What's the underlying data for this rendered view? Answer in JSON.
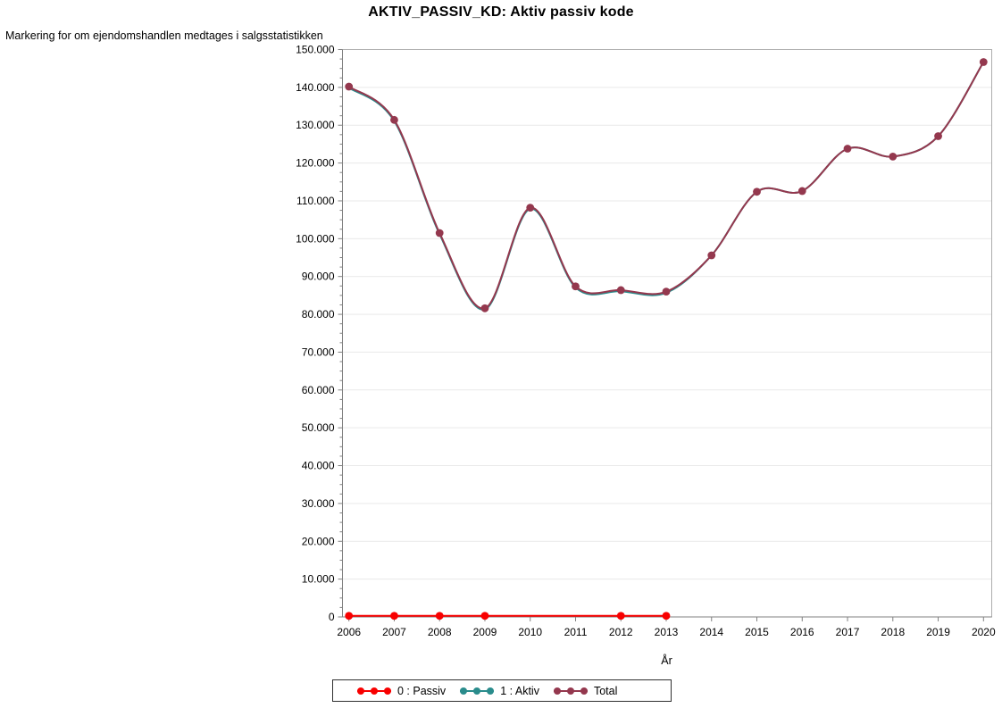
{
  "chart_data": {
    "type": "line",
    "title": "AKTIV_PASSIV_KD: Aktiv passiv kode",
    "subtitle": "Markering for om ejendomshandlen medtages i salgsstatistikken",
    "xlabel": "År",
    "ylabel": "",
    "x": [
      2006,
      2007,
      2008,
      2009,
      2010,
      2011,
      2012,
      2013,
      2014,
      2015,
      2016,
      2017,
      2018,
      2019,
      2020
    ],
    "x_tick_labels": [
      "2006",
      "2007",
      "2008",
      "2009",
      "2010",
      "2011",
      "2012",
      "2013",
      "2014",
      "2015",
      "2016",
      "2017",
      "2018",
      "2019",
      "2020"
    ],
    "ylim": [
      0,
      150000
    ],
    "y_tick_interval": 10000,
    "y_minor_tick_interval": 2500,
    "y_tick_labels": [
      "0",
      "10.000",
      "20.000",
      "30.000",
      "40.000",
      "50.000",
      "60.000",
      "70.000",
      "80.000",
      "90.000",
      "100.000",
      "110.000",
      "120.000",
      "130.000",
      "140.000",
      "150.000"
    ],
    "grid": true,
    "legend_position": "bottom",
    "series": [
      {
        "name": "0 : Passiv",
        "color": "#f80000",
        "interpolation": "linear",
        "values": [
          300,
          300,
          300,
          300,
          300,
          300,
          300,
          300,
          null,
          null,
          null,
          null,
          null,
          null,
          null
        ],
        "marker_years": [
          2006,
          2007,
          2008,
          2009,
          2012,
          2013
        ]
      },
      {
        "name": "1 : Aktiv",
        "color": "#2a8c8c",
        "interpolation": "spline",
        "values": [
          139900,
          131100,
          101200,
          81300,
          107900,
          87100,
          86100,
          85700,
          95600,
          112400,
          112600,
          123800,
          121700,
          127100,
          146700
        ],
        "marker_years": []
      },
      {
        "name": "Total",
        "color": "#94384e",
        "interpolation": "spline",
        "values": [
          140200,
          131400,
          101500,
          81600,
          108200,
          87400,
          86400,
          86000,
          95600,
          112400,
          112600,
          123800,
          121700,
          127100,
          146700
        ],
        "marker_years": [
          2006,
          2007,
          2008,
          2009,
          2010,
          2011,
          2012,
          2013,
          2014,
          2015,
          2016,
          2017,
          2018,
          2019,
          2020
        ]
      }
    ]
  },
  "colors": {
    "grid": "#e9e9e9",
    "frame": "#adadad",
    "axis": "#808080",
    "tick": "#808080",
    "text": "#000000",
    "legend_border": "#2f2f2f"
  }
}
